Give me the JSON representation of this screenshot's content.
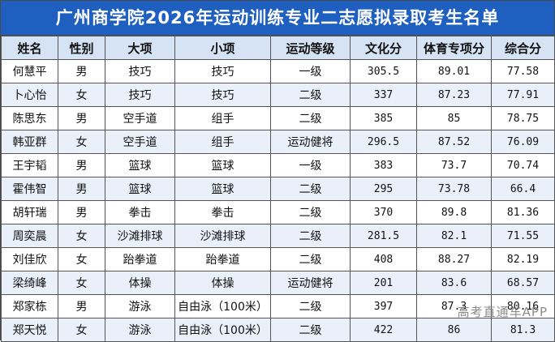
{
  "title": "广州商学院2026年运动训练专业二志愿拟录取考生名单",
  "headers": [
    "姓名",
    "性别",
    "大项",
    "小项",
    "运动等级",
    "文化分",
    "体育专项分",
    "综合分"
  ],
  "rows": [
    [
      "何慧平",
      "男",
      "技巧",
      "技巧",
      "一级",
      "305.5",
      "89.01",
      "77.58"
    ],
    [
      "卜心怡",
      "女",
      "技巧",
      "技巧",
      "二级",
      "337",
      "87.23",
      "77.91"
    ],
    [
      "陈思东",
      "男",
      "空手道",
      "组手",
      "二级",
      "385",
      "85",
      "78.75"
    ],
    [
      "韩亚群",
      "女",
      "空手道",
      "组手",
      "运动健将",
      "296.5",
      "87.52",
      "76.09"
    ],
    [
      "王宇韬",
      "男",
      "篮球",
      "篮球",
      "一级",
      "383",
      "73.7",
      "70.74"
    ],
    [
      "霍伟智",
      "男",
      "篮球",
      "篮球",
      "二级",
      "295",
      "73.78",
      "66.4"
    ],
    [
      "胡轩瑞",
      "男",
      "拳击",
      "拳击",
      "二级",
      "370",
      "89.8",
      "81.36"
    ],
    [
      "周奕晨",
      "女",
      "沙滩排球",
      "沙滩排球",
      "二级",
      "281.5",
      "82.1",
      "71.55"
    ],
    [
      "刘佳欣",
      "女",
      "跆拳道",
      "跆拳道",
      "二级",
      "408",
      "88.27",
      "82.19"
    ],
    [
      "梁绮峰",
      "女",
      "体操",
      "体操",
      "运动健将",
      "201",
      "83.6",
      "68.57"
    ],
    [
      "郑家栋",
      "男",
      "游泳",
      "自由泳（100米）",
      "二级",
      "397",
      "87.3",
      "80.16"
    ],
    [
      "郑天悦",
      "女",
      "游泳",
      "自由泳（100米）",
      "二级",
      "422",
      "86",
      "81.3"
    ]
  ],
  "watermark": "高考直通车APP",
  "colors": {
    "title_bg": "#1f5fbf",
    "header_bg": "#d5e3f5",
    "alt_row_bg": "#e9f0fa"
  }
}
